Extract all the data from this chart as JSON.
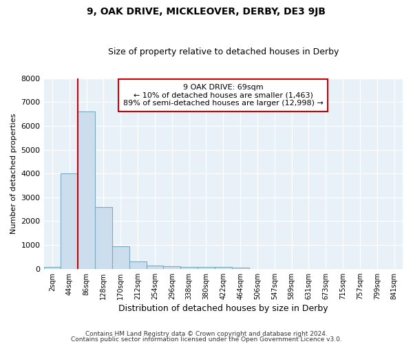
{
  "title": "9, OAK DRIVE, MICKLEOVER, DERBY, DE3 9JB",
  "subtitle": "Size of property relative to detached houses in Derby",
  "xlabel": "Distribution of detached houses by size in Derby",
  "ylabel": "Number of detached properties",
  "bar_labels": [
    "2sqm",
    "44sqm",
    "86sqm",
    "128sqm",
    "170sqm",
    "212sqm",
    "254sqm",
    "296sqm",
    "338sqm",
    "380sqm",
    "422sqm",
    "464sqm",
    "506sqm",
    "547sqm",
    "589sqm",
    "631sqm",
    "673sqm",
    "715sqm",
    "757sqm",
    "799sqm",
    "841sqm"
  ],
  "bar_values": [
    75,
    4000,
    6600,
    2600,
    950,
    320,
    135,
    115,
    85,
    75,
    65,
    55,
    0,
    0,
    0,
    0,
    0,
    0,
    0,
    0,
    0
  ],
  "bar_color": "#ccdded",
  "bar_edge_color": "#7aaabb",
  "ylim": [
    0,
    8000
  ],
  "yticks": [
    0,
    1000,
    2000,
    3000,
    4000,
    5000,
    6000,
    7000,
    8000
  ],
  "vline_color": "#cc0000",
  "annotation_text": "9 OAK DRIVE: 69sqm\n← 10% of detached houses are smaller (1,463)\n89% of semi-detached houses are larger (12,998) →",
  "annotation_box_color": "#ffffff",
  "annotation_box_edge": "#cc0000",
  "footer_line1": "Contains HM Land Registry data © Crown copyright and database right 2024.",
  "footer_line2": "Contains public sector information licensed under the Open Government Licence v3.0.",
  "background_color": "#ffffff",
  "plot_bg_color": "#e8f0f8",
  "grid_color": "#ffffff"
}
